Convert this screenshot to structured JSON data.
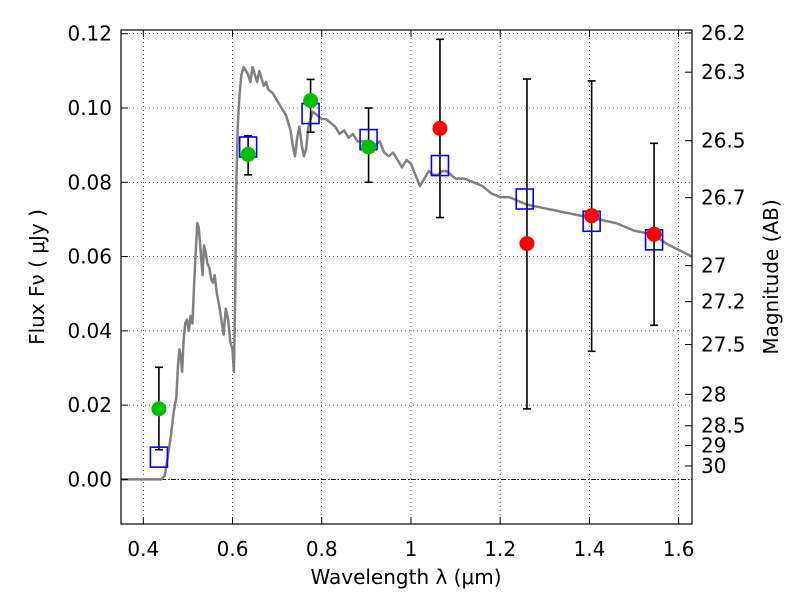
{
  "chart_data": {
    "type": "scatter",
    "xlabel": "Wavelength  λ (μm)",
    "ylabel": "Flux  Fν  ( μJy )",
    "y2label": "Magnitude (AB)",
    "xlim": [
      0.35,
      1.63
    ],
    "ylim": [
      -0.012,
      0.121
    ],
    "x_ticks": [
      0.4,
      0.6,
      0.8,
      1.0,
      1.2,
      1.4,
      1.6
    ],
    "x_tick_labels": [
      "0.4",
      "0.6",
      "0.8",
      "1",
      "1.2",
      "1.4",
      "1.6"
    ],
    "y_ticks": [
      0.0,
      0.02,
      0.04,
      0.06,
      0.08,
      0.1,
      0.12
    ],
    "y_tick_labels": [
      "0.00",
      "0.02",
      "0.04",
      "0.06",
      "0.08",
      "0.10",
      "0.12"
    ],
    "mag_ticks": [
      26.2,
      26.3,
      26.5,
      26.7,
      27,
      27.2,
      27.5,
      28,
      28.5,
      29,
      30
    ],
    "mag_tick_labels": [
      "26.2",
      "26.3",
      "26.5",
      "26.7",
      "27",
      "27.2",
      "27.5",
      "28",
      "28.5",
      "29",
      "30"
    ],
    "grid": true,
    "zero_line": 0.0,
    "model_spectrum": {
      "color": "#808080",
      "points": [
        [
          0.35,
          0.0
        ],
        [
          0.44,
          0.0
        ],
        [
          0.448,
          0.001
        ],
        [
          0.455,
          0.006
        ],
        [
          0.462,
          0.012
        ],
        [
          0.468,
          0.018
        ],
        [
          0.474,
          0.022
        ],
        [
          0.478,
          0.031
        ],
        [
          0.481,
          0.035
        ],
        [
          0.484,
          0.033
        ],
        [
          0.487,
          0.029
        ],
        [
          0.49,
          0.037
        ],
        [
          0.494,
          0.042
        ],
        [
          0.498,
          0.043
        ],
        [
          0.502,
          0.04
        ],
        [
          0.506,
          0.044
        ],
        [
          0.51,
          0.042
        ],
        [
          0.514,
          0.053
        ],
        [
          0.518,
          0.062
        ],
        [
          0.521,
          0.069
        ],
        [
          0.524,
          0.068
        ],
        [
          0.527,
          0.064
        ],
        [
          0.53,
          0.059
        ],
        [
          0.533,
          0.055
        ],
        [
          0.536,
          0.063
        ],
        [
          0.54,
          0.061
        ],
        [
          0.544,
          0.058
        ],
        [
          0.548,
          0.057
        ],
        [
          0.552,
          0.054
        ],
        [
          0.556,
          0.053
        ],
        [
          0.56,
          0.055
        ],
        [
          0.565,
          0.05
        ],
        [
          0.57,
          0.047
        ],
        [
          0.575,
          0.043
        ],
        [
          0.58,
          0.039
        ],
        [
          0.585,
          0.046
        ],
        [
          0.59,
          0.043
        ],
        [
          0.595,
          0.037
        ],
        [
          0.6,
          0.035
        ],
        [
          0.603,
          0.029
        ],
        [
          0.606,
          0.05
        ],
        [
          0.609,
          0.082
        ],
        [
          0.612,
          0.096
        ],
        [
          0.616,
          0.104
        ],
        [
          0.62,
          0.109
        ],
        [
          0.625,
          0.111
        ],
        [
          0.63,
          0.11
        ],
        [
          0.635,
          0.109
        ],
        [
          0.64,
          0.107
        ],
        [
          0.645,
          0.111
        ],
        [
          0.65,
          0.109
        ],
        [
          0.655,
          0.107
        ],
        [
          0.66,
          0.11
        ],
        [
          0.665,
          0.108
        ],
        [
          0.67,
          0.106
        ],
        [
          0.675,
          0.107
        ],
        [
          0.68,
          0.105
        ],
        [
          0.69,
          0.104
        ],
        [
          0.7,
          0.102
        ],
        [
          0.71,
          0.1
        ],
        [
          0.72,
          0.098
        ],
        [
          0.73,
          0.094
        ],
        [
          0.735,
          0.09
        ],
        [
          0.74,
          0.087
        ],
        [
          0.745,
          0.092
        ],
        [
          0.75,
          0.095
        ],
        [
          0.755,
          0.09
        ],
        [
          0.76,
          0.087
        ],
        [
          0.765,
          0.089
        ],
        [
          0.77,
          0.095
        ],
        [
          0.78,
          0.099
        ],
        [
          0.79,
          0.098
        ],
        [
          0.8,
          0.097
        ],
        [
          0.81,
          0.097
        ],
        [
          0.82,
          0.096
        ],
        [
          0.83,
          0.095
        ],
        [
          0.84,
          0.093
        ],
        [
          0.85,
          0.094
        ],
        [
          0.86,
          0.092
        ],
        [
          0.87,
          0.093
        ],
        [
          0.88,
          0.091
        ],
        [
          0.9,
          0.091
        ],
        [
          0.91,
          0.09
        ],
        [
          0.92,
          0.09
        ],
        [
          0.93,
          0.091
        ],
        [
          0.94,
          0.088
        ],
        [
          0.95,
          0.087
        ],
        [
          0.96,
          0.088
        ],
        [
          0.97,
          0.086
        ],
        [
          0.98,
          0.084
        ],
        [
          0.99,
          0.086
        ],
        [
          1.0,
          0.085
        ],
        [
          1.01,
          0.082
        ],
        [
          1.02,
          0.079
        ],
        [
          1.03,
          0.081
        ],
        [
          1.04,
          0.083
        ],
        [
          1.05,
          0.082
        ],
        [
          1.06,
          0.082
        ],
        [
          1.07,
          0.083
        ],
        [
          1.08,
          0.083
        ],
        [
          1.09,
          0.082
        ],
        [
          1.1,
          0.081
        ],
        [
          1.12,
          0.081
        ],
        [
          1.14,
          0.08
        ],
        [
          1.16,
          0.079
        ],
        [
          1.18,
          0.077
        ],
        [
          1.2,
          0.076
        ],
        [
          1.22,
          0.076
        ],
        [
          1.24,
          0.075
        ],
        [
          1.26,
          0.074
        ],
        [
          1.3,
          0.073
        ],
        [
          1.34,
          0.072
        ],
        [
          1.38,
          0.071
        ],
        [
          1.42,
          0.07
        ],
        [
          1.46,
          0.069
        ],
        [
          1.5,
          0.067
        ],
        [
          1.54,
          0.066
        ],
        [
          1.58,
          0.063
        ],
        [
          1.63,
          0.06
        ]
      ]
    },
    "model_points": {
      "color": "#0000ff",
      "x": [
        0.435,
        0.635,
        0.775,
        0.905,
        1.065,
        1.255,
        1.405,
        1.545
      ],
      "y": [
        0.006,
        0.0895,
        0.0985,
        0.0915,
        0.0845,
        0.0755,
        0.0695,
        0.0645
      ]
    },
    "observed_points": {
      "x": [
        0.435,
        0.635,
        0.775,
        0.905,
        1.065,
        1.26,
        1.405,
        1.545
      ],
      "y": [
        0.019,
        0.0875,
        0.102,
        0.0895,
        0.0945,
        0.0635,
        0.071,
        0.066
      ],
      "err_low": [
        0.008,
        0.082,
        0.0935,
        0.08,
        0.0705,
        0.019,
        0.0345,
        0.0415
      ],
      "err_high": [
        0.0302,
        0.0925,
        0.1077,
        0.1,
        0.1185,
        0.1078,
        0.1073,
        0.0905
      ],
      "colors": [
        "#00c000",
        "#00c000",
        "#00c000",
        "#00c000",
        "#ff0000",
        "#ff0000",
        "#ff0000",
        "#ff0000"
      ]
    }
  }
}
